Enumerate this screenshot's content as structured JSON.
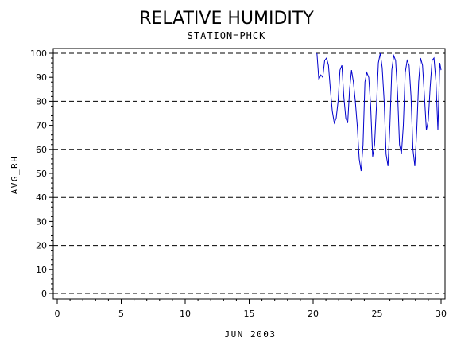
{
  "chart_data": {
    "type": "line",
    "title": "RELATIVE HUMIDITY",
    "subtitle": "STATION=PHCK",
    "xlabel": "JUN 2003",
    "ylabel": "AVG_RH",
    "xlim": [
      0,
      30
    ],
    "ylim": [
      0,
      100
    ],
    "x_ticks": [
      0,
      5,
      10,
      15,
      20,
      25,
      30
    ],
    "y_ticks": [
      0,
      10,
      20,
      30,
      40,
      50,
      60,
      70,
      80,
      90,
      100
    ],
    "gridlines_y": [
      0,
      20,
      40,
      60,
      80,
      100
    ],
    "grid": "horizontal dashed",
    "series": [
      {
        "color": "#0000cc",
        "x": [
          20.3,
          20.45,
          20.6,
          20.75,
          20.9,
          21.05,
          21.2,
          21.35,
          21.5,
          21.65,
          21.8,
          21.95,
          22.1,
          22.25,
          22.4,
          22.55,
          22.7,
          22.85,
          23.0,
          23.15,
          23.3,
          23.45,
          23.6,
          23.75,
          23.9,
          24.05,
          24.2,
          24.35,
          24.5,
          24.65,
          24.8,
          24.95,
          25.1,
          25.25,
          25.4,
          25.55,
          25.7,
          25.85,
          26.0,
          26.15,
          26.3,
          26.45,
          26.6,
          26.75,
          26.9,
          27.05,
          27.2,
          27.35,
          27.5,
          27.65,
          27.8,
          27.95,
          28.1,
          28.25,
          28.4,
          28.55,
          28.7,
          28.85,
          29.0,
          29.15,
          29.3,
          29.45,
          29.6,
          29.75,
          29.9,
          30.0
        ],
        "y": [
          100,
          89,
          91,
          90,
          97,
          98,
          95,
          85,
          76,
          71,
          73,
          80,
          93,
          95,
          82,
          73,
          71,
          85,
          93,
          88,
          80,
          70,
          56,
          51,
          62,
          88,
          92,
          90,
          78,
          57,
          62,
          78,
          96,
          100,
          94,
          80,
          58,
          53,
          70,
          93,
          99,
          97,
          83,
          62,
          58,
          70,
          92,
          97,
          95,
          82,
          60,
          53,
          68,
          88,
          98,
          95,
          82,
          68,
          72,
          86,
          97,
          98,
          88,
          68,
          96,
          93
        ]
      }
    ]
  }
}
